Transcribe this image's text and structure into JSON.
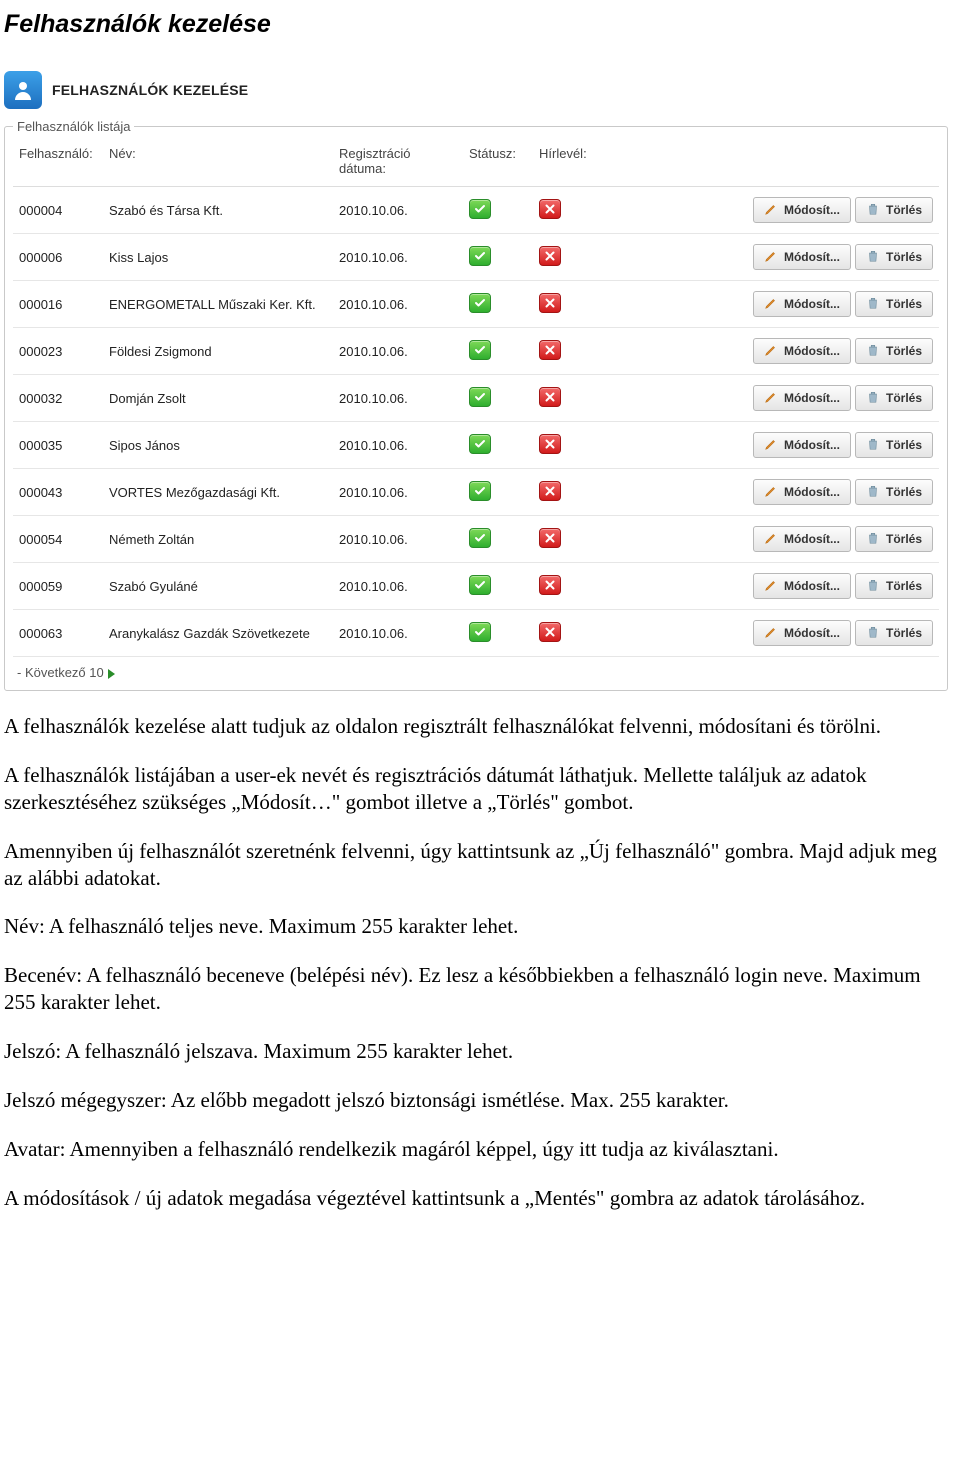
{
  "doc_title": "Felhasználók kezelése",
  "panel_title": "FELHASZNÁLÓK KEZELÉSE",
  "legend": "Felhasználók listája",
  "columns": {
    "id": "Felhasználó:",
    "name": "Név:",
    "date": "Regisztráció dátuma:",
    "status": "Státusz:",
    "news": "Hírlevél:"
  },
  "buttons": {
    "modify": "Módosít...",
    "delete": "Törlés"
  },
  "pager": {
    "prefix": "- ",
    "label": "Következő 10"
  },
  "status_colors": {
    "ok": "#2fae2f",
    "off": "#d11b1b"
  },
  "rows": [
    {
      "id": "000004",
      "name": "Szabó és Társa Kft.",
      "date": "2010.10.06.",
      "status": true,
      "news": false
    },
    {
      "id": "000006",
      "name": "Kiss Lajos",
      "date": "2010.10.06.",
      "status": true,
      "news": false
    },
    {
      "id": "000016",
      "name": "ENERGOMETALL Műszaki Ker. Kft.",
      "date": "2010.10.06.",
      "status": true,
      "news": false
    },
    {
      "id": "000023",
      "name": "Földesi Zsigmond",
      "date": "2010.10.06.",
      "status": true,
      "news": false
    },
    {
      "id": "000032",
      "name": "Domján Zsolt",
      "date": "2010.10.06.",
      "status": true,
      "news": false
    },
    {
      "id": "000035",
      "name": "Sipos János",
      "date": "2010.10.06.",
      "status": true,
      "news": false
    },
    {
      "id": "000043",
      "name": "VORTES Mezőgazdasági Kft.",
      "date": "2010.10.06.",
      "status": true,
      "news": false
    },
    {
      "id": "000054",
      "name": "Németh Zoltán",
      "date": "2010.10.06.",
      "status": true,
      "news": false
    },
    {
      "id": "000059",
      "name": "Szabó Gyuláné",
      "date": "2010.10.06.",
      "status": true,
      "news": false
    },
    {
      "id": "000063",
      "name": "Aranykalász Gazdák Szövetkezete",
      "date": "2010.10.06.",
      "status": true,
      "news": false
    }
  ],
  "body": {
    "p1": "A felhasználók kezelése alatt tudjuk az oldalon regisztrált felhasználókat felvenni, módosítani és törölni.",
    "p2": "A felhasználók listájában a user-ek nevét és regisztrációs dátumát láthatjuk. Mellette találjuk az adatok szerkesztéséhez szükséges „Módosít…\" gombot illetve a „Törlés\" gombot.",
    "p3": "Amennyiben új felhasználót szeretnénk felvenni, úgy kattintsunk az „Új felhasználó\" gombra. Majd adjuk meg az alábbi adatokat.",
    "p4": "Név: A felhasználó teljes neve. Maximum 255 karakter lehet.",
    "p5": "Becenév: A felhasználó beceneve (belépési név). Ez lesz a későbbiekben a felhasználó login neve. Maximum 255 karakter lehet.",
    "p6": "Jelszó: A felhasználó jelszava. Maximum 255 karakter lehet.",
    "p7": "Jelszó mégegyszer: Az előbb megadott jelszó biztonsági ismétlése. Max. 255 karakter.",
    "p8": "Avatar: Amennyiben a felhasználó rendelkezik magáról képpel, úgy itt tudja az kiválasztani.",
    "p9": "A módosítások / új adatok megadása végeztével kattintsunk a „Mentés\" gombra az adatok tárolásához."
  }
}
